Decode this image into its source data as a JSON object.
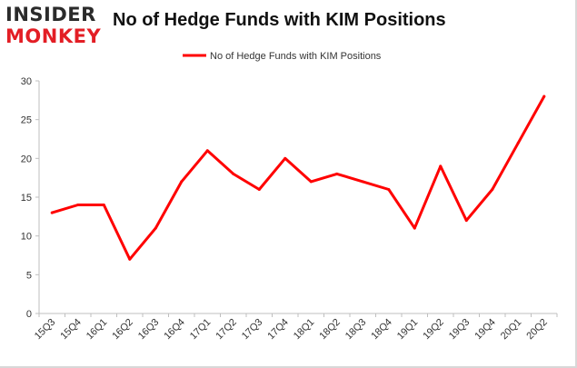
{
  "logo": {
    "line1": "INSIDER",
    "line2": "MONKEY"
  },
  "chart_data": {
    "type": "line",
    "title": "No of Hedge Funds with KIM Positions",
    "xlabel": "",
    "ylabel": "",
    "categories": [
      "15Q3",
      "15Q4",
      "16Q1",
      "16Q2",
      "16Q3",
      "16Q4",
      "17Q1",
      "17Q2",
      "17Q3",
      "17Q4",
      "18Q1",
      "18Q2",
      "18Q3",
      "18Q4",
      "19Q1",
      "19Q2",
      "19Q3",
      "19Q4",
      "20Q1",
      "20Q2"
    ],
    "series": [
      {
        "name": "No of Hedge Funds with KIM Positions",
        "color": "#ff0000",
        "values": [
          13,
          14,
          14,
          7,
          11,
          17,
          21,
          18,
          16,
          20,
          17,
          18,
          17,
          16,
          11,
          19,
          12,
          16,
          22,
          28
        ]
      }
    ],
    "ylim": [
      0,
      30
    ],
    "yticks": [
      0,
      5,
      10,
      15,
      20,
      25,
      30
    ],
    "grid": false,
    "legend": "top-center"
  }
}
